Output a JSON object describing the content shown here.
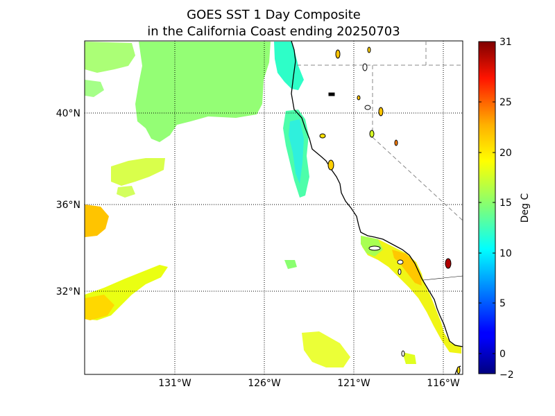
{
  "title_line1": "GOES SST 1 Day Composite",
  "title_line2": "in the California Coast ending 20250703",
  "map": {
    "lat_labels": [
      "40°N",
      "36°N",
      "32°N"
    ],
    "lon_labels": [
      "131°W",
      "126°W",
      "121°W",
      "116°W"
    ],
    "lon_range": [
      -136,
      -115
    ],
    "lat_range": [
      28.5,
      43.2
    ],
    "grid_lats": [
      40,
      36,
      32
    ],
    "grid_lons": [
      -131,
      -126,
      -121,
      -116
    ]
  },
  "colorbar": {
    "label": "Deg C",
    "tick_labels": [
      "31",
      "25",
      "20",
      "15",
      "10",
      "5",
      "0",
      "−2"
    ],
    "min": -2,
    "max": 31
  },
  "colors": {
    "cold": "#00007f",
    "warm": "#7f0000",
    "ocean_background": "#ffffff",
    "coastline": "#000000"
  }
}
